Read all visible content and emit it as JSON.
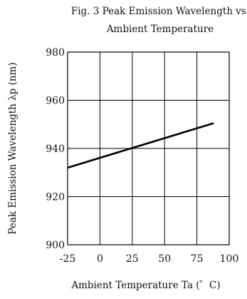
{
  "chart_data": {
    "type": "line",
    "title": "Fig. 3 Peak Emission Wavelength vs.",
    "subtitle": "Ambient Temperature",
    "xlabel": "Ambient Temperature Ta (゜C)",
    "ylabel": "Peak Emission Wavelength λp (nm)",
    "xlim": [
      -25,
      100
    ],
    "ylim": [
      900,
      980
    ],
    "x_ticks": [
      "-25",
      "0",
      "25",
      "50",
      "75",
      "100"
    ],
    "y_ticks": [
      "900",
      "920",
      "940",
      "960",
      "980"
    ],
    "grid": true,
    "legend": "none",
    "series": [
      {
        "x": [
          -25,
          88
        ],
        "values": [
          932,
          950.5
        ]
      }
    ],
    "colors": {
      "line": "#000000",
      "grid": "#000000",
      "background": "#ffffff"
    }
  }
}
